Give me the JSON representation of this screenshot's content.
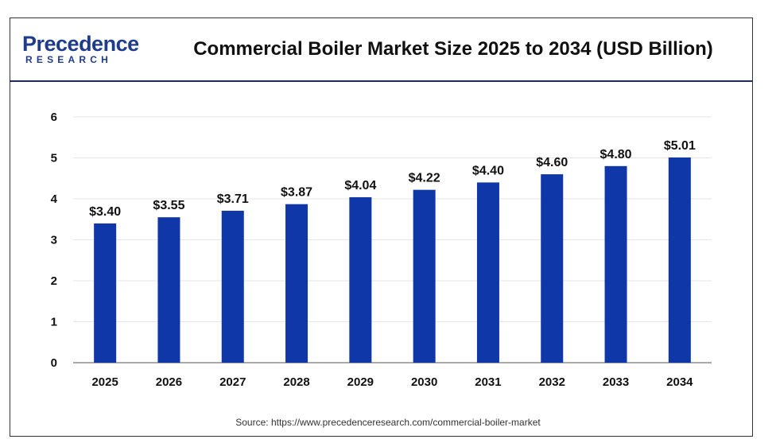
{
  "logo": {
    "brand_top": "Precedence",
    "brand_bottom": "RESEARCH"
  },
  "source_text": "Source: https://www.precedenceresearch.com/commercial-boiler-market",
  "colors": {
    "bar": "#0f37a8",
    "grid": "#e6e6e6",
    "axis": "#555555",
    "brand": "#1f3c8a"
  },
  "chart_data": {
    "type": "bar",
    "title": "Commercial Boiler Market Size 2025 to 2034 (USD Billion)",
    "xlabel": "",
    "ylabel": "",
    "categories": [
      "2025",
      "2026",
      "2027",
      "2028",
      "2029",
      "2030",
      "2031",
      "2032",
      "2033",
      "2034"
    ],
    "values": [
      3.4,
      3.55,
      3.71,
      3.87,
      4.04,
      4.22,
      4.4,
      4.6,
      4.8,
      5.01
    ],
    "data_labels": [
      "$3.40",
      "$3.55",
      "$3.71",
      "$3.87",
      "$4.04",
      "$4.22",
      "$4.40",
      "$4.60",
      "$4.80",
      "$5.01"
    ],
    "y_ticks": [
      "0",
      "1",
      "2",
      "3",
      "4",
      "5",
      "6"
    ],
    "ylim": [
      0,
      6
    ],
    "grid": true,
    "legend": "none"
  }
}
